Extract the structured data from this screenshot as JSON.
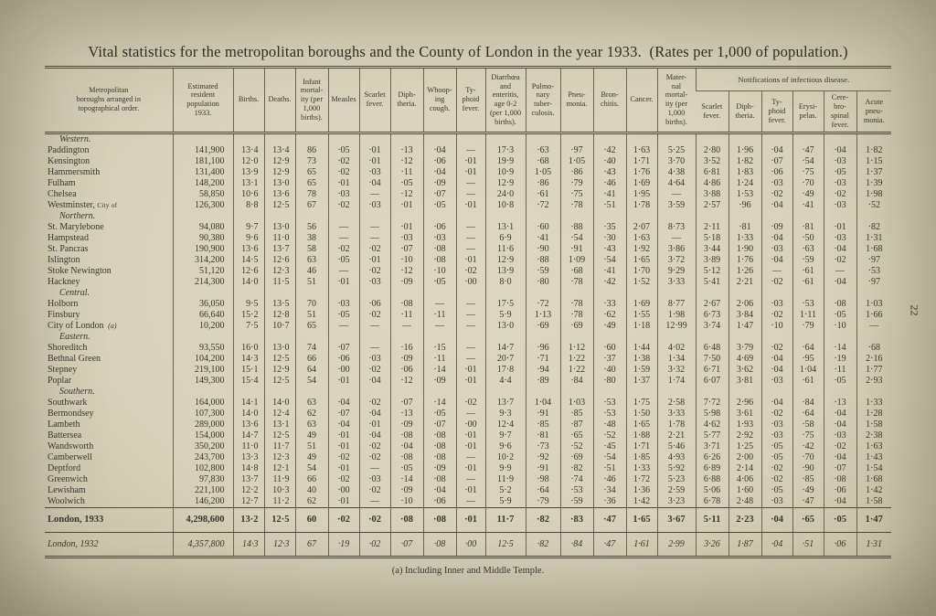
{
  "page": {
    "title": "Vital statistics for the metropolitan boroughs and the County of London in the year 1933.  (Rates per 1,000 of population.)",
    "page_number": "22",
    "footnote": "(a) Including Inner and Middle Temple."
  },
  "table": {
    "headers": {
      "boroughs": "Metropolitan\nboroughs arranged in\ntopographical order.",
      "population": "Estimated\nresident\npopulation\n1933.",
      "births": "Births.",
      "deaths": "Deaths.",
      "infant_mortality": "Infant\nmortal-\nity (per\n1,000\nbirths).",
      "measles": "Measles",
      "scarlet_fever": "Scarlet\nfever.",
      "diphtheria": "Diph-\ntheria.",
      "whooping_cough": "Whoop-\ning\ncough.",
      "typhoid_fever": "Ty-\nphoid\nfever.",
      "diarrhoea": "Diarrhœa\nand\nenteritis,\nage 0-2\n(per 1,000\nbirths).",
      "pulmonary_tb": "Pulmo-\nnary\ntuber-\nculosis.",
      "pneumonia": "Pneu-\nmonia.",
      "bronchitis": "Bron-\nchitis.",
      "cancer": "Cancer.",
      "maternal_mortality": "Mater-\nnal\nmortal-\nity (per\n1,000\nbirths).",
      "notifications": "Notifications of infectious disease.",
      "notif_scarlet": "Scarlet\nfever.",
      "notif_diphtheria": "Diph-\ntheria.",
      "notif_typhoid": "Ty-\nphoid\nfever.",
      "notif_erysipelas": "Erysi-\npelas.",
      "notif_cerebrospinal": "Cere-\nbro-\nspinal\nfever.",
      "notif_acute_pneumonia": "Acute\npneu-\nmonia."
    },
    "groups": [
      {
        "label": "Western.",
        "rows": [
          {
            "name": "Paddington",
            "values": [
              "141,900",
              "13·4",
              "13·4",
              "86",
              "·05",
              "·01",
              "·13",
              "·04",
              "—",
              "17·3",
              "·63",
              "·97",
              "·42",
              "1·63",
              "5·25",
              "2·80",
              "1·96",
              "·04",
              "·47",
              "·04",
              "1·82"
            ]
          },
          {
            "name": "Kensington",
            "values": [
              "181,100",
              "12·0",
              "12·9",
              "73",
              "·02",
              "·01",
              "·12",
              "·06",
              "·01",
              "19·9",
              "·68",
              "1·05",
              "·40",
              "1·71",
              "3·70",
              "3·52",
              "1·82",
              "·07",
              "·54",
              "·03",
              "1·15"
            ]
          },
          {
            "name": "Hammersmith",
            "values": [
              "131,400",
              "13·9",
              "12·9",
              "65",
              "·02",
              "·03",
              "·11",
              "·04",
              "·01",
              "10·9",
              "1·05",
              "·86",
              "·43",
              "1·76",
              "4·38",
              "6·81",
              "1·83",
              "·06",
              "·75",
              "·05",
              "1·37"
            ]
          },
          {
            "name": "Fulham",
            "values": [
              "148,200",
              "13·1",
              "13·0",
              "65",
              "·01",
              "·04",
              "·05",
              "·09",
              "—",
              "12·9",
              "·86",
              "·79",
              "·46",
              "1·69",
              "4·64",
              "4·86",
              "1·24",
              "·03",
              "·70",
              "·03",
              "1·39"
            ]
          },
          {
            "name": "Chelsea",
            "values": [
              "58,850",
              "10·6",
              "13·6",
              "78",
              "·03",
              "—",
              "·12",
              "·07",
              "—",
              "24·0",
              "·61",
              "·75",
              "·41",
              "1·95",
              "—",
              "3·88",
              "1·53",
              "·02",
              "·49",
              "·02",
              "1·98"
            ]
          },
          {
            "name": "Westminster,",
            "suffix": "City of",
            "values": [
              "126,300",
              "8·8",
              "12·5",
              "67",
              "·02",
              "·03",
              "·01",
              "·05",
              "·01",
              "10·8",
              "·72",
              "·78",
              "·51",
              "1·78",
              "3·59",
              "2·57",
              "·96",
              "·04",
              "·41",
              "·03",
              "·52"
            ]
          }
        ]
      },
      {
        "label": "Northern.",
        "rows": [
          {
            "name": "St. Marylebone",
            "values": [
              "94,080",
              "9·7",
              "13·0",
              "56",
              "—",
              "—",
              "·01",
              "·06",
              "—",
              "13·1",
              "·60",
              "·88",
              "·35",
              "2·07",
              "8·73",
              "2·11",
              "·81",
              "·09",
              "·81",
              "·01",
              "·82"
            ]
          },
          {
            "name": "Hampstead",
            "values": [
              "90,380",
              "9·6",
              "11·0",
              "38",
              "—",
              "—",
              "·03",
              "·03",
              "—",
              "6·9",
              "·41",
              "·54",
              "·30",
              "1·63",
              "—",
              "5·18",
              "1·33",
              "·04",
              "·50",
              "·03",
              "1·31"
            ]
          },
          {
            "name": "St. Pancras",
            "values": [
              "190,900",
              "13·6",
              "13·7",
              "58",
              "·02",
              "·02",
              "·07",
              "·08",
              "—",
              "11·6",
              "·90",
              "·91",
              "·43",
              "1·92",
              "3·86",
              "3·44",
              "1·90",
              "·03",
              "·63",
              "·04",
              "1·68"
            ]
          },
          {
            "name": "Islington",
            "values": [
              "314,200",
              "14·5",
              "12·6",
              "63",
              "·05",
              "·01",
              "·10",
              "·08",
              "·01",
              "12·9",
              "·88",
              "1·09",
              "·54",
              "1·65",
              "3·72",
              "3·89",
              "1·76",
              "·04",
              "·59",
              "·02",
              "·97"
            ]
          },
          {
            "name": "Stoke Newington",
            "values": [
              "51,120",
              "12·6",
              "12·3",
              "46",
              "—",
              "·02",
              "·12",
              "·10",
              "·02",
              "13·9",
              "·59",
              "·68",
              "·41",
              "1·70",
              "9·29",
              "5·12",
              "1·26",
              "—",
              "·61",
              "—",
              "·53"
            ]
          },
          {
            "name": "Hackney",
            "values": [
              "214,300",
              "14·0",
              "11·5",
              "51",
              "·01",
              "·03",
              "·09",
              "·05",
              "·00",
              "8·0",
              "·80",
              "·78",
              "·42",
              "1·52",
              "3·33",
              "5·41",
              "2·21",
              "·02",
              "·61",
              "·04",
              "·97"
            ]
          }
        ]
      },
      {
        "label": "Central.",
        "rows": [
          {
            "name": "Holborn",
            "values": [
              "36,050",
              "9·5",
              "13·5",
              "70",
              "·03",
              "·06",
              "·08",
              "—",
              "—",
              "17·5",
              "·72",
              "·78",
              "·33",
              "1·69",
              "8·77",
              "2·67",
              "2·06",
              "·03",
              "·53",
              "·08",
              "1·03"
            ]
          },
          {
            "name": "Finsbury",
            "values": [
              "66,640",
              "15·2",
              "12·8",
              "51",
              "·05",
              "·02",
              "·11",
              "·11",
              "—",
              "5·9",
              "1·13",
              "·78",
              "·62",
              "1·55",
              "1·98",
              "6·73",
              "3·84",
              "·02",
              "1·11",
              "·05",
              "1·66"
            ]
          },
          {
            "name": "City of London",
            "marker": "(a)",
            "values": [
              "10,200",
              "7·5",
              "10·7",
              "65",
              "—",
              "—",
              "—",
              "—",
              "—",
              "13·0",
              "·69",
              "·69",
              "·49",
              "1·18",
              "12·99",
              "3·74",
              "1·47",
              "·10",
              "·79",
              "·10",
              "—"
            ]
          }
        ]
      },
      {
        "label": "Eastern.",
        "rows": [
          {
            "name": "Shoreditch",
            "values": [
              "93,550",
              "16·0",
              "13·0",
              "74",
              "·07",
              "—",
              "·16",
              "·15",
              "—",
              "14·7",
              "·96",
              "1·12",
              "·60",
              "1·44",
              "4·02",
              "6·48",
              "3·79",
              "·02",
              "·64",
              "·14",
              "·68"
            ]
          },
          {
            "name": "Bethnal Green",
            "values": [
              "104,200",
              "14·3",
              "12·5",
              "66",
              "·06",
              "·03",
              "·09",
              "·11",
              "—",
              "20·7",
              "·71",
              "1·22",
              "·37",
              "1·38",
              "1·34",
              "7·50",
              "4·69",
              "·04",
              "·95",
              "·19",
              "2·16"
            ]
          },
          {
            "name": "Stepney",
            "values": [
              "219,100",
              "15·1",
              "12·9",
              "64",
              "·00",
              "·02",
              "·06",
              "·14",
              "·01",
              "17·8",
              "·94",
              "1·22",
              "·40",
              "1·59",
              "3·32",
              "6·71",
              "3·62",
              "·04",
              "1·04",
              "·11",
              "1·77"
            ]
          },
          {
            "name": "Poplar",
            "values": [
              "149,300",
              "15·4",
              "12·5",
              "54",
              "·01",
              "·04",
              "·12",
              "·09",
              "·01",
              "4·4",
              "·89",
              "·84",
              "·80",
              "1·37",
              "1·74",
              "6·07",
              "3·81",
              "·03",
              "·61",
              "·05",
              "2·93"
            ]
          }
        ]
      },
      {
        "label": "Southern.",
        "rows": [
          {
            "name": "Southwark",
            "values": [
              "164,000",
              "14·1",
              "14·0",
              "63",
              "·04",
              "·02",
              "·07",
              "·14",
              "·02",
              "13·7",
              "1·04",
              "1·03",
              "·53",
              "1·75",
              "2·58",
              "7·72",
              "2·96",
              "·04",
              "·84",
              "·13",
              "1·33"
            ]
          },
          {
            "name": "Bermondsey",
            "values": [
              "107,300",
              "14·0",
              "12·4",
              "62",
              "·07",
              "·04",
              "·13",
              "·05",
              "—",
              "9·3",
              "·91",
              "·85",
              "·53",
              "1·50",
              "3·33",
              "5·98",
              "3·61",
              "·02",
              "·64",
              "·04",
              "1·28"
            ]
          },
          {
            "name": "Lambeth",
            "values": [
              "289,000",
              "13·6",
              "13·1",
              "63",
              "·04",
              "·01",
              "·09",
              "·07",
              "·00",
              "12·4",
              "·85",
              "·87",
              "·48",
              "1·65",
              "1·78",
              "4·62",
              "1·93",
              "·03",
              "·58",
              "·04",
              "1·58"
            ]
          },
          {
            "name": "Battersea",
            "values": [
              "154,000",
              "14·7",
              "12·5",
              "49",
              "·01",
              "·04",
              "·08",
              "·08",
              "·01",
              "9·7",
              "·81",
              "·65",
              "·52",
              "1·88",
              "2·21",
              "5·77",
              "2·92",
              "·03",
              "·75",
              "·03",
              "2·38"
            ]
          },
          {
            "name": "Wandsworth",
            "values": [
              "350,200",
              "11·0",
              "11·7",
              "51",
              "·01",
              "·02",
              "·04",
              "·08",
              "·01",
              "9·6",
              "·73",
              "·52",
              "·45",
              "1·71",
              "5·46",
              "3·71",
              "1·25",
              "·05",
              "·42",
              "·02",
              "1·63"
            ]
          },
          {
            "name": "Camberwell",
            "values": [
              "243,700",
              "13·3",
              "12·3",
              "49",
              "·02",
              "·02",
              "·08",
              "·08",
              "—",
              "10·2",
              "·92",
              "·69",
              "·54",
              "1·85",
              "4·93",
              "6·26",
              "2·00",
              "·05",
              "·70",
              "·04",
              "1·43"
            ]
          },
          {
            "name": "Deptford",
            "values": [
              "102,800",
              "14·8",
              "12·1",
              "54",
              "·01",
              "—",
              "·05",
              "·09",
              "·01",
              "9·9",
              "·91",
              "·82",
              "·51",
              "1·33",
              "5·92",
              "6·89",
              "2·14",
              "·02",
              "·90",
              "·07",
              "1·54"
            ]
          },
          {
            "name": "Greenwich",
            "values": [
              "97,830",
              "13·7",
              "11·9",
              "66",
              "·02",
              "·03",
              "·14",
              "·08",
              "—",
              "11·9",
              "·98",
              "·74",
              "·46",
              "1·72",
              "5·23",
              "6·88",
              "4·06",
              "·02",
              "·85",
              "·08",
              "1·68"
            ]
          },
          {
            "name": "Lewisham",
            "values": [
              "221,100",
              "12·2",
              "10·3",
              "40",
              "·00",
              "·02",
              "·09",
              "·04",
              "·01",
              "5·2",
              "·64",
              "·53",
              "·34",
              "1·36",
              "2·59",
              "5·06",
              "1·60",
              "·05",
              "·49",
              "·06",
              "1·42"
            ]
          },
          {
            "name": "Woolwich",
            "values": [
              "146,200",
              "12·7",
              "11·2",
              "62",
              "·01",
              "—",
              "·10",
              "·06",
              "—",
              "5·9",
              "·79",
              "·59",
              "·36",
              "1·42",
              "3·23",
              "6·78",
              "2·48",
              "·03",
              "·47",
              "·04",
              "1·58"
            ]
          }
        ]
      }
    ],
    "totals": [
      {
        "name": "London, 1933",
        "values": [
          "4,298,600",
          "13·2",
          "12·5",
          "60",
          "·02",
          "·02",
          "·08",
          "·08",
          "·01",
          "11·7",
          "·82",
          "·83",
          "·47",
          "1·65",
          "3·67",
          "5·11",
          "2·23",
          "·04",
          "·65",
          "·05",
          "1·47"
        ]
      },
      {
        "name": "London, 1932",
        "values": [
          "4,357,800",
          "14·3",
          "12·3",
          "67",
          "·19",
          "·02",
          "·07",
          "·08",
          "·00",
          "12·5",
          "·82",
          "·84",
          "·47",
          "1·61",
          "2·99",
          "3·26",
          "1·87",
          "·04",
          "·51",
          "·06",
          "1·31"
        ]
      }
    ]
  }
}
